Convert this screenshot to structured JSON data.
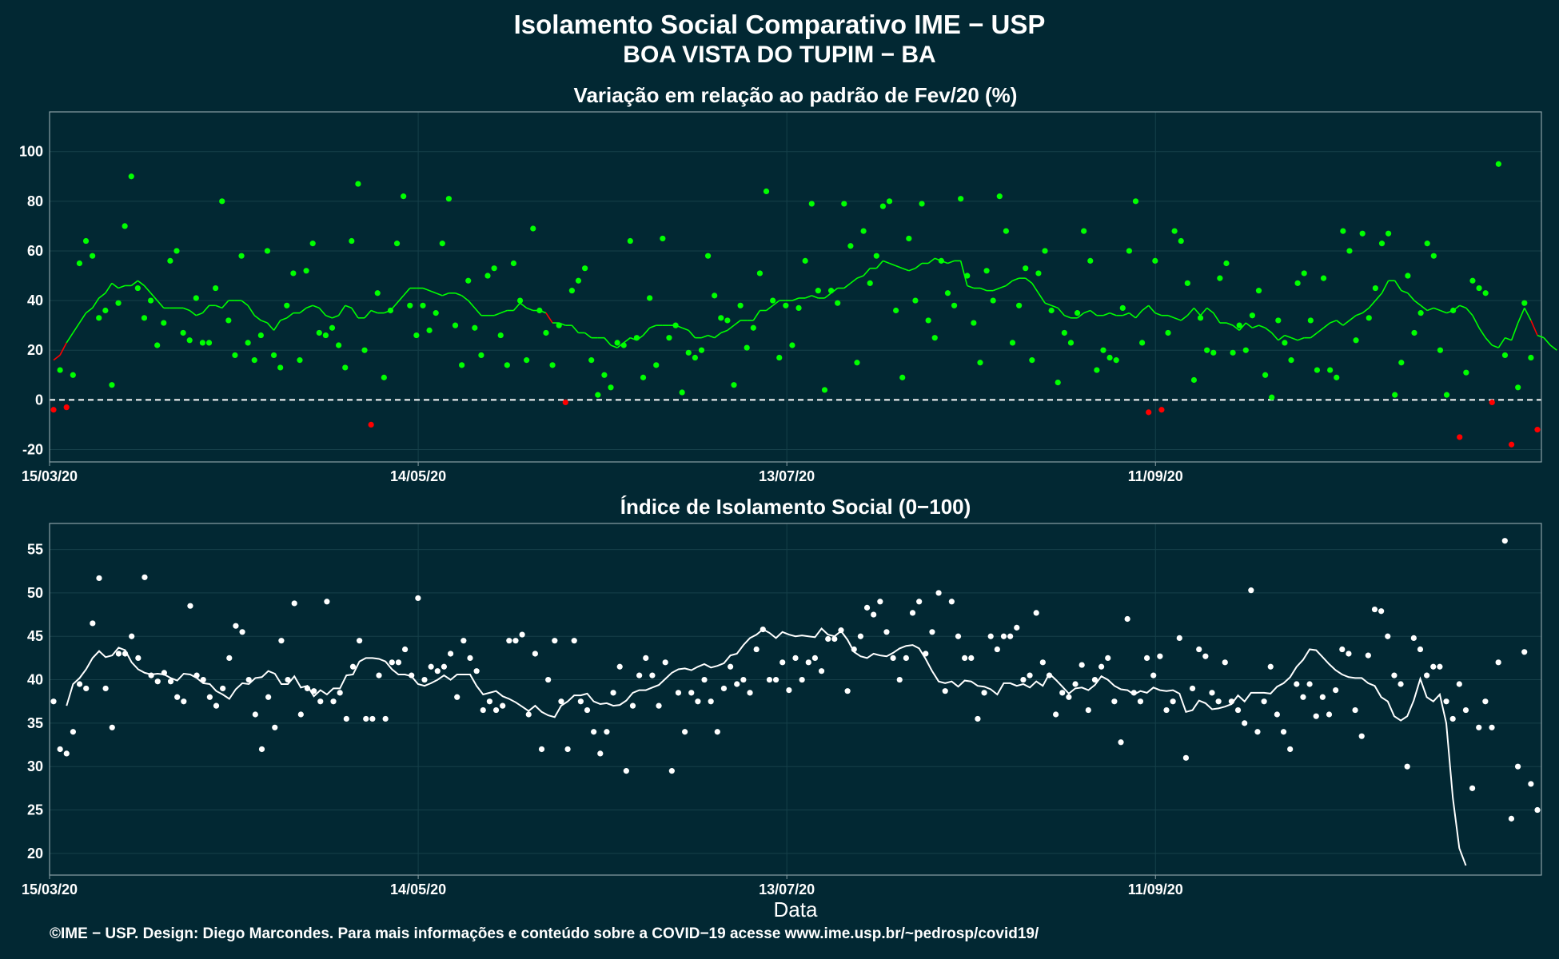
{
  "header": {
    "title_line1": "Isolamento Social Comparativo IME − USP",
    "title_line2": "BOA VISTA DO TUPIM − BA"
  },
  "footer": {
    "credit": "©IME − USP. Design: Diego Marcondes. Para mais informações e conteúdo sobre a COVID−19 acesse www.ime.usp.br/~pedrosp/covid19/"
  },
  "colors": {
    "background": "#022833",
    "grid": "#16404a",
    "positive": "#00ff00",
    "negative": "#ff0000",
    "index": "#ffffff"
  },
  "chart_data": [
    {
      "type": "scatter",
      "title": "Variação em relação ao padrão de Fev/20 (%)",
      "xlabel": "",
      "ylabel": "",
      "x_ticks": [
        "15/03/20",
        "14/05/20",
        "13/07/20",
        "11/09/20"
      ],
      "y_ticks": [
        -20,
        0,
        20,
        40,
        60,
        80,
        100
      ],
      "xlim": [
        "15/03/20",
        "11/11/20"
      ],
      "ylim": [
        -25,
        116
      ],
      "reference_line": 0,
      "grid": true,
      "series": [
        {
          "role": "daily points",
          "values": [
            -4,
            12,
            -3,
            10,
            55,
            64,
            58,
            33,
            36,
            6,
            39,
            70,
            90,
            45,
            33,
            40,
            22,
            31,
            56,
            60,
            27,
            24,
            41,
            23,
            23,
            45,
            80,
            32,
            18,
            58,
            23,
            16,
            26,
            60,
            18,
            13,
            38,
            51,
            16,
            52,
            63,
            27,
            26,
            29,
            22,
            13,
            64,
            87,
            20,
            -10,
            43,
            9,
            36,
            63,
            82,
            38,
            26,
            38,
            28,
            35,
            63,
            81,
            30,
            14,
            48,
            29,
            18,
            50,
            53,
            26,
            14,
            55,
            40,
            16,
            69,
            36,
            27,
            14,
            30,
            -1,
            44,
            48,
            53,
            16,
            2,
            10,
            5,
            23,
            22,
            64,
            25,
            9,
            41,
            14,
            65,
            25,
            30,
            3,
            19,
            17,
            20,
            58,
            42,
            33,
            32,
            6,
            38,
            21,
            29,
            51,
            84,
            40,
            17,
            38,
            22,
            37,
            56,
            79,
            44,
            4,
            44,
            39,
            79,
            62,
            15,
            68,
            47,
            58,
            78,
            80,
            36,
            9,
            65,
            40,
            79,
            32,
            25,
            56,
            43,
            38,
            81,
            50,
            31,
            15,
            52,
            40,
            82,
            68,
            23,
            38,
            53,
            16,
            51,
            60,
            36,
            7,
            27,
            23,
            35,
            68,
            56,
            12,
            20,
            17,
            16,
            37,
            60,
            80,
            23,
            -5,
            56,
            -4,
            27,
            68,
            64,
            47,
            8,
            33,
            20,
            19,
            49,
            55,
            19,
            30,
            20,
            34,
            44,
            10,
            1,
            32,
            23,
            16,
            47,
            51,
            32,
            12,
            49,
            12,
            9,
            68,
            60,
            24,
            67,
            33,
            45,
            63,
            67,
            2,
            15,
            50,
            27,
            35,
            63,
            58,
            20,
            2,
            36,
            -15,
            11,
            48,
            45,
            43,
            -1,
            95,
            18,
            -18,
            5,
            39,
            17,
            -12
          ]
        },
        {
          "role": "7-day moving average",
          "values": [
            16,
            18,
            23,
            27,
            31,
            35,
            37,
            41,
            43,
            47,
            45,
            46,
            46,
            48,
            46,
            43,
            40,
            37,
            37,
            37,
            37,
            36,
            34,
            35,
            38,
            38,
            37,
            40,
            40,
            40,
            38,
            34,
            32,
            31,
            28,
            32,
            33,
            35,
            35,
            37,
            38,
            37,
            34,
            33,
            34,
            38,
            37,
            33,
            33,
            36,
            35,
            35,
            36,
            39,
            42,
            45,
            45,
            45,
            44,
            43,
            42,
            43,
            43,
            42,
            40,
            37,
            34,
            34,
            34,
            35,
            36,
            36,
            39,
            37,
            36,
            36,
            35,
            31,
            31,
            30,
            30,
            27,
            27,
            25,
            25,
            25,
            22,
            21,
            23,
            25,
            24,
            26,
            29,
            30,
            30,
            30,
            30,
            29,
            28,
            25,
            25,
            26,
            25,
            27,
            28,
            30,
            32,
            32,
            32,
            36,
            36,
            38,
            40,
            40,
            40,
            41,
            41,
            42,
            41,
            41,
            43,
            45,
            45,
            47,
            49,
            50,
            53,
            53,
            56,
            55,
            54,
            53,
            52,
            53,
            55,
            55,
            57,
            56,
            55,
            56,
            56,
            46,
            45,
            45,
            44,
            44,
            45,
            46,
            48,
            49,
            49,
            47,
            43,
            39,
            38,
            37,
            34,
            33,
            33,
            35,
            36,
            34,
            34,
            35,
            34,
            34,
            35,
            33,
            36,
            38,
            35,
            34,
            34,
            33,
            32,
            34,
            37,
            34,
            37,
            35,
            31,
            31,
            30,
            28,
            31,
            29,
            30,
            29,
            27,
            24,
            26,
            25,
            24,
            25,
            25,
            27,
            29,
            31,
            32,
            30,
            32,
            34,
            35,
            37,
            40,
            43,
            48,
            48,
            44,
            43,
            40,
            38,
            36,
            37,
            36,
            35,
            36,
            38,
            37,
            34,
            29,
            25,
            22,
            21,
            25,
            24,
            31,
            37,
            32,
            26,
            25,
            22,
            20
          ]
        }
      ]
    },
    {
      "type": "scatter",
      "title": "Índice de Isolamento Social (0−100)",
      "xlabel": "Data",
      "ylabel": "",
      "x_ticks": [
        "15/03/20",
        "14/05/20",
        "13/07/20",
        "11/09/20"
      ],
      "y_ticks": [
        20,
        25,
        30,
        35,
        40,
        45,
        50,
        55
      ],
      "xlim": [
        "15/03/20",
        "11/11/20"
      ],
      "ylim": [
        17.5,
        58
      ],
      "grid": true,
      "series": [
        {
          "role": "daily points",
          "values": [
            37.5,
            32,
            31.5,
            34,
            39.5,
            39,
            46.5,
            51.7,
            39,
            34.5,
            43,
            43,
            45,
            42.5,
            51.8,
            40.5,
            39.8,
            40.8,
            39.8,
            38,
            37.5,
            48.5,
            40.5,
            40,
            38,
            37,
            39,
            42.5,
            46.2,
            45.5,
            40,
            36,
            32,
            38,
            34.5,
            44.5,
            40,
            48.8,
            36,
            39,
            38.7,
            37.5,
            49,
            37.5,
            38.5,
            35.5,
            41.5,
            44.5,
            35.5,
            35.5,
            40.5,
            35.5,
            42,
            42,
            43.5,
            40.5,
            49.4,
            40,
            41.5,
            41,
            41.5,
            43,
            38,
            44.5,
            42.5,
            41,
            36.5,
            37.5,
            36.5,
            37,
            44.5,
            44.5,
            45.2,
            36,
            43,
            32,
            40,
            44.5,
            37.5,
            32,
            44.5,
            37.5,
            36.5,
            34,
            31.5,
            34,
            38.5,
            41.5,
            29.5,
            37,
            40.5,
            42.5,
            40.5,
            37,
            42,
            29.5,
            38.5,
            34,
            38.5,
            37.5,
            40,
            37.5,
            34,
            39,
            41.5,
            39.5,
            40,
            38.5,
            43.5,
            45.8,
            40,
            40,
            42,
            38.8,
            42.5,
            40,
            42,
            42.5,
            41,
            44.7,
            44.7,
            45.7,
            38.7,
            43.5,
            45,
            48.3,
            47.5,
            49,
            45.5,
            42.5,
            40,
            42.5,
            47.7,
            49,
            43,
            45.5,
            50,
            38.7,
            49,
            45,
            42.5,
            42.5,
            35.5,
            38.5,
            45,
            43.5,
            45,
            45,
            46,
            40,
            40.5,
            47.7,
            42,
            40.5,
            36,
            38.5,
            38,
            39.5,
            41.7,
            36.5,
            40,
            41.5,
            42.5,
            37.5,
            32.8,
            47,
            38.5,
            37.5,
            42.5,
            40.5,
            42.7,
            36.5,
            37.5,
            44.8,
            31,
            39,
            43.5,
            42.7,
            38.5,
            37.5,
            42,
            37.5,
            36.5,
            35,
            50.3,
            34,
            37.5,
            41.5,
            36,
            34,
            32,
            39.5,
            38,
            39.5,
            35.8,
            38,
            36,
            38.8,
            43.5,
            43,
            36.5,
            33.5,
            42.8,
            48.1,
            47.9,
            45,
            40.5,
            39.5,
            30,
            44.8,
            43.5,
            40.5,
            41.5,
            41.5,
            37.5,
            35.5,
            39.5,
            36.5,
            27.5,
            34.5,
            37.5,
            34.5,
            42,
            56,
            24,
            30,
            43.2,
            28,
            25
          ]
        },
        {
          "role": "7-day moving average",
          "values": [
            37,
            39.5,
            40.2,
            41.2,
            42.5,
            43.3,
            42.6,
            42.8,
            43.7,
            43.4,
            42,
            41.2,
            40.8,
            40.6,
            40.7,
            40.6,
            40.2,
            39.9,
            40.7,
            40.6,
            40.2,
            39.6,
            39.5,
            38.7,
            38.3,
            37.8,
            38.9,
            39.6,
            39.5,
            40.2,
            40.3,
            41,
            40.7,
            39.5,
            39.5,
            40.4,
            39.1,
            39.3,
            38.1,
            38.8,
            38.3,
            39,
            39,
            40.5,
            40.6,
            42.1,
            42.5,
            42.5,
            42.4,
            42.1,
            41.2,
            40.6,
            40.6,
            40.4,
            39.5,
            39.3,
            39.6,
            40,
            40.5,
            40,
            40.6,
            40.6,
            40.6,
            39.3,
            38.3,
            38.5,
            38.7,
            38.1,
            37.8,
            37.4,
            36.9,
            36.4,
            37,
            36.3,
            35.9,
            35.7,
            37,
            37.5,
            38.2,
            38.2,
            38.4,
            37.5,
            37.2,
            37.3,
            37,
            37.1,
            37.6,
            38.5,
            38.8,
            38.8,
            39.1,
            39.4,
            40.1,
            40.8,
            41.2,
            41.3,
            41.1,
            41.5,
            41.8,
            41.4,
            41.6,
            41.9,
            42.8,
            43,
            44,
            44.8,
            45.2,
            45.8,
            45.4,
            44.8,
            45.5,
            45.2,
            45,
            45.1,
            45,
            44.9,
            45.9,
            45.2,
            45,
            45.6,
            44.6,
            43.2,
            42.7,
            42.5,
            43,
            42.8,
            42.7,
            43.1,
            43.6,
            43.9,
            44,
            43.6,
            42.4,
            41,
            39.8,
            39.6,
            39.8,
            39.2,
            39.9,
            39.8,
            39.3,
            39.2,
            38.9,
            38.3,
            39.6,
            39.6,
            39.3,
            39.5,
            39.1,
            39.8,
            39.3,
            40.7,
            40,
            39.2,
            38.4,
            39,
            39.1,
            38.8,
            39.4,
            40.4,
            40,
            39.3,
            38.9,
            38.8,
            38.3,
            38.7,
            38.5,
            39.1,
            38.8,
            38.7,
            38.8,
            38.4,
            36.3,
            36.5,
            37.6,
            37.3,
            36.6,
            36.7,
            36.9,
            37.2,
            38.2,
            37.5,
            38.5,
            38.5,
            38.5,
            38.4,
            39.2,
            39.6,
            40.3,
            41.5,
            42.3,
            43.5,
            43.4,
            42.6,
            41.8,
            41.1,
            40.6,
            40.3,
            40.2,
            40.2,
            39.6,
            39.3,
            38,
            37.5,
            35.8,
            35.3,
            35.8,
            37.6,
            40.1,
            38,
            37.5,
            38.3,
            35,
            26.4,
            20.6,
            18.6
          ]
        }
      ]
    }
  ]
}
